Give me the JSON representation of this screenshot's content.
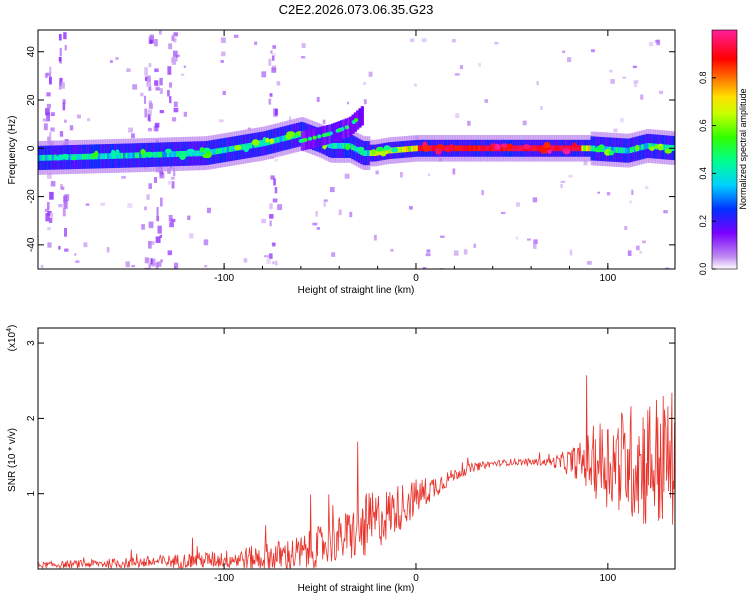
{
  "figure_title": "C2E2.2026.073.06.35.G23",
  "chart_data": [
    {
      "type": "heatmap",
      "title": "C2E2.2026.073.06.35.G23",
      "xlabel": "Height of straight line (km)",
      "ylabel": "Frequency (Hz)",
      "xlim": [
        -197,
        135
      ],
      "ylim": [
        -50,
        49
      ],
      "xticks": [
        -100,
        0,
        100
      ],
      "yticks": [
        -40,
        -20,
        0,
        20,
        40
      ],
      "xtick_labels": [
        "-100",
        "0",
        "100"
      ],
      "ytick_labels": [
        "-40",
        "-20",
        "0",
        "20",
        "40"
      ],
      "colorbar": {
        "label": "Normalized spectral amplitude",
        "range": [
          0,
          1
        ],
        "ticks": [
          0.0,
          0.2,
          0.4,
          0.6,
          0.8
        ],
        "tick_labels": [
          "0.0",
          "0.2",
          "0.4",
          "0.6",
          "0.8"
        ]
      },
      "ridge": {
        "description_points_x": [
          -197,
          -150,
          -110,
          -80,
          -60,
          -50,
          -45,
          -35,
          -28,
          -22,
          -15,
          0,
          30,
          60,
          90,
          110,
          120,
          135
        ],
        "description_points_freq": [
          -4,
          -3,
          -2,
          2,
          6,
          3,
          1,
          1,
          -2,
          -2,
          -1,
          0,
          0,
          0,
          0,
          -1,
          1,
          0
        ],
        "branch_x": [
          -60,
          -45,
          -35,
          -28
        ],
        "branch_freq": [
          3,
          6,
          9,
          14
        ]
      }
    },
    {
      "type": "line",
      "xlabel": "Height of straight line (km)",
      "ylabel": "SNR (10 * v/v)",
      "yscale_label": "(x10",
      "yscale_exponent": "4",
      "yscale_suffix": ")",
      "xlim": [
        -197,
        135
      ],
      "ylim": [
        0,
        3.2
      ],
      "xticks": [
        -100,
        0,
        100
      ],
      "yticks": [
        1,
        2,
        3
      ],
      "xtick_labels": [
        "-100",
        "0",
        "100"
      ],
      "ytick_labels": [
        "1",
        "2",
        "3"
      ],
      "series": [
        {
          "name": "SNR",
          "color": "#e8332b",
          "envelope_x": [
            -197,
            -150,
            -110,
            -80,
            -60,
            -50,
            -40,
            -30,
            -20,
            -10,
            0,
            10,
            20,
            30,
            40,
            50,
            60,
            70,
            80,
            90,
            100,
            110,
            120,
            130,
            135
          ],
          "envelope_y": [
            0.05,
            0.08,
            0.12,
            0.15,
            0.2,
            0.3,
            0.4,
            0.5,
            0.65,
            0.8,
            0.95,
            1.1,
            1.25,
            1.35,
            1.4,
            1.42,
            1.42,
            1.42,
            1.42,
            1.43,
            1.43,
            1.43,
            1.43,
            1.43,
            1.43
          ],
          "noise_x": [
            -197,
            -150,
            -100,
            -60,
            -40,
            -25,
            -15,
            -5,
            5,
            20,
            40,
            70,
            85,
            95,
            110,
            120,
            130,
            135
          ],
          "noise_y": [
            0.04,
            0.07,
            0.12,
            0.25,
            0.3,
            0.45,
            0.35,
            0.3,
            0.2,
            0.08,
            0.04,
            0.05,
            0.25,
            0.55,
            0.75,
            0.9,
            0.95,
            0.95
          ]
        }
      ]
    }
  ]
}
